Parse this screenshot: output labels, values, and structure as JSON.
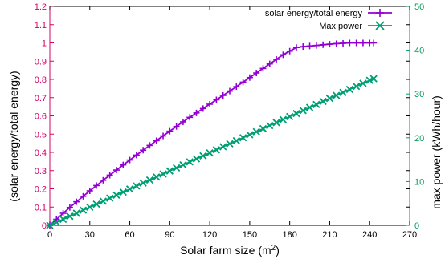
{
  "chart_data": {
    "type": "line",
    "title": "",
    "xlabel": "Solar farm size (m",
    "xlabel_sup": "2",
    "xlabel_end": ")",
    "ylabel_left": "(solar energy/total energy)",
    "ylabel_right": "max power (kWh/hour)",
    "xlim": [
      0,
      270
    ],
    "ylim_left": [
      0,
      1.2
    ],
    "ylim_right": [
      0,
      50
    ],
    "x_ticks": [
      "0",
      "30",
      "60",
      "90",
      "120",
      "150",
      "180",
      "210",
      "240",
      "270"
    ],
    "y_left_ticks": [
      "0",
      "0.1",
      "0.2",
      "0.3",
      "0.4",
      "0.5",
      "0.6",
      "0.7",
      "0.8",
      "0.9",
      "1",
      "1.1",
      "1.2"
    ],
    "y_right_ticks": [
      "0",
      "10",
      "20",
      "30",
      "40",
      "50"
    ],
    "legend_position": "top-right",
    "grid": false,
    "colors": {
      "left_axis": "#d4006a",
      "right_axis": "#009e5a",
      "series1": "#9400d3",
      "series2": "#009e73"
    },
    "series": [
      {
        "name": "solar energy/total energy",
        "axis": "left",
        "marker": "plus",
        "x": [
          0,
          5,
          10,
          15,
          20,
          25,
          30,
          35,
          40,
          45,
          50,
          55,
          60,
          65,
          70,
          75,
          80,
          85,
          90,
          95,
          100,
          105,
          110,
          115,
          120,
          125,
          130,
          135,
          140,
          145,
          150,
          155,
          160,
          165,
          170,
          175,
          180,
          185,
          190,
          195,
          200,
          205,
          210,
          215,
          220,
          225,
          230,
          235,
          240,
          243
        ],
        "y": [
          0.0,
          0.033,
          0.066,
          0.098,
          0.129,
          0.159,
          0.189,
          0.218,
          0.247,
          0.275,
          0.303,
          0.331,
          0.358,
          0.385,
          0.412,
          0.438,
          0.464,
          0.49,
          0.516,
          0.542,
          0.567,
          0.592,
          0.616,
          0.64,
          0.664,
          0.688,
          0.712,
          0.736,
          0.76,
          0.785,
          0.81,
          0.835,
          0.86,
          0.885,
          0.91,
          0.935,
          0.955,
          0.975,
          0.98,
          0.983,
          0.986,
          0.99,
          0.993,
          0.996,
          0.998,
          1.0,
          1.0,
          1.0,
          1.0,
          1.0
        ]
      },
      {
        "name": "Max power",
        "axis": "right",
        "marker": "x",
        "x": [
          0,
          5,
          10,
          15,
          20,
          25,
          30,
          35,
          40,
          45,
          50,
          55,
          60,
          65,
          70,
          75,
          80,
          85,
          90,
          95,
          100,
          105,
          110,
          115,
          120,
          125,
          130,
          135,
          140,
          145,
          150,
          155,
          160,
          165,
          170,
          175,
          180,
          185,
          190,
          195,
          200,
          205,
          210,
          215,
          220,
          225,
          230,
          235,
          240,
          243
        ],
        "y": [
          0.0,
          0.69,
          1.38,
          2.07,
          2.76,
          3.45,
          4.14,
          4.83,
          5.52,
          6.21,
          6.9,
          7.59,
          8.28,
          8.97,
          9.66,
          10.35,
          11.04,
          11.73,
          12.42,
          13.11,
          13.8,
          14.49,
          15.18,
          15.87,
          16.56,
          17.25,
          17.94,
          18.63,
          19.32,
          20.01,
          20.7,
          21.39,
          22.08,
          22.77,
          23.46,
          24.15,
          24.84,
          25.53,
          26.22,
          26.91,
          27.6,
          28.29,
          28.98,
          29.67,
          30.36,
          31.05,
          31.74,
          32.43,
          33.12,
          33.5
        ]
      }
    ]
  }
}
